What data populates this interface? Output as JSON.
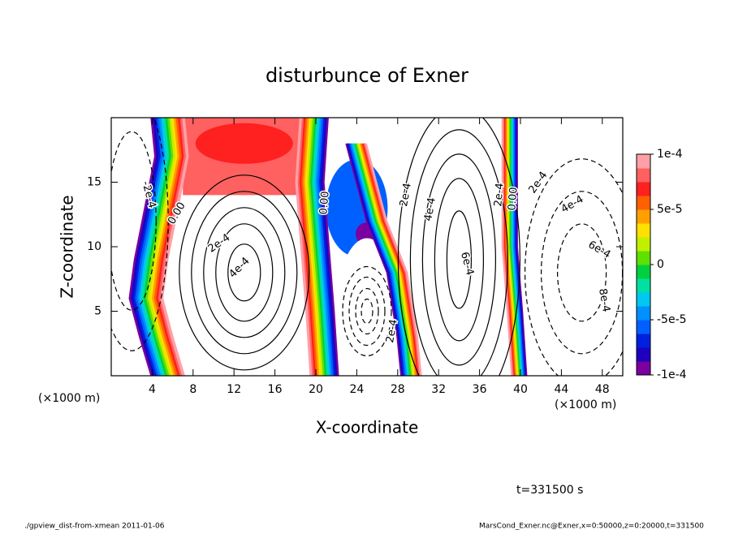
{
  "chart_data": {
    "type": "contour",
    "title": "disturbunce of Exner",
    "x_label": "X-coordinate",
    "y_label": "Z-coordinate",
    "x_unit_left": "(×1000 m)",
    "x_unit_right": "(×1000 m)",
    "xlim": [
      0,
      50
    ],
    "xticks": [
      4,
      8,
      12,
      16,
      20,
      24,
      28,
      32,
      36,
      40,
      44,
      48
    ],
    "ylim": [
      0,
      20
    ],
    "yticks": [
      5,
      10,
      15
    ],
    "colorbar": {
      "lim": [
        -0.0001,
        0.0001
      ],
      "ticks": [
        {
          "value": 0.0001,
          "label": "1e-4"
        },
        {
          "value": 5e-05,
          "label": "5e-5"
        },
        0,
        {
          "value": -5e-05,
          "label": "-5e-5"
        },
        {
          "value": -0.0001,
          "label": "-1e-4"
        }
      ],
      "colors": [
        "#7a00a0",
        "#2000c0",
        "#0020e0",
        "#0060ff",
        "#0090ff",
        "#00c8f0",
        "#00e0a0",
        "#00d040",
        "#60e000",
        "#c0f000",
        "#ffe000",
        "#ffa000",
        "#ff6000",
        "#ff2020",
        "#ff6060",
        "#ffa0a8"
      ]
    },
    "contour_labels": [
      "-2e-4",
      "0.00",
      "2e-4",
      "4e-4",
      "0.00",
      "2e-4",
      "4e-4",
      "6e-4",
      "2e-4",
      "2e-4",
      "0.00",
      "2e-4",
      "4e-4",
      "6e-4",
      "8e-4"
    ],
    "time_label": "t=331500 s",
    "footer_left": "./gpview_dist-from-xmean  2011-01-06",
    "footer_right": "MarsCond_Exner.nc@Exner,x=0:50000,z=0:20000,t=331500"
  }
}
